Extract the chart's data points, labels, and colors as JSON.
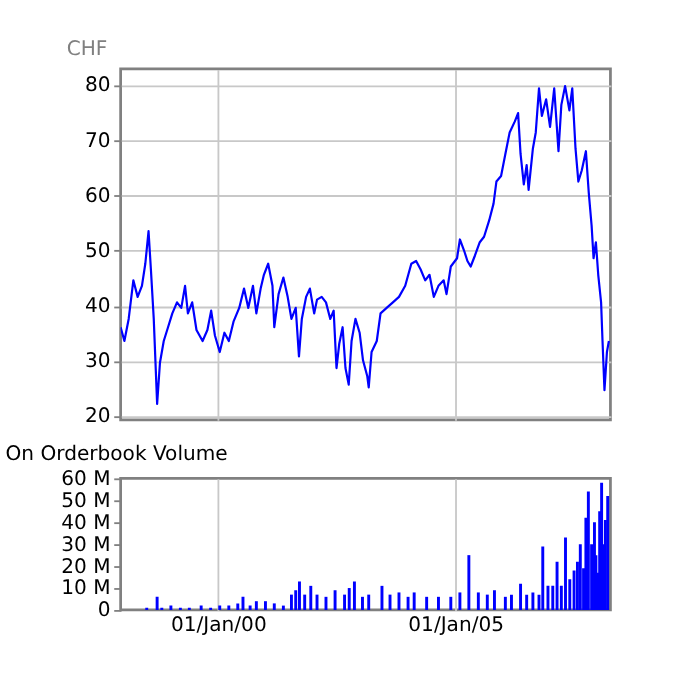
{
  "chart_data": [
    {
      "type": "line",
      "ylabel": "CHF",
      "color": "#0000ff",
      "grid": true,
      "tick_labels": "y",
      "xlim": [
        "1997-12-13",
        "2008-04-10"
      ],
      "xticks": [
        {
          "value": "2000-01-01",
          "label": null
        },
        {
          "value": "2005-01-01",
          "label": null
        }
      ],
      "ylim": [
        19.3,
        82.9
      ],
      "yticks": [
        20,
        30,
        40,
        50,
        60,
        70,
        80
      ],
      "x": [
        "1997-12-13",
        "1998-01-11",
        "1998-02-13",
        "1998-03-21",
        "1998-04-23",
        "1998-05-26",
        "1998-06-21",
        "1998-07-16",
        "1998-08-03",
        "1998-08-25",
        "1998-09-20",
        "1998-10-12",
        "1998-11-10",
        "1998-12-13",
        "1999-01-15",
        "1999-02-20",
        "1999-03-25",
        "1999-04-23",
        "1999-05-15",
        "1999-06-17",
        "1999-07-20",
        "1999-09-05",
        "1999-10-12",
        "1999-11-10",
        "1999-12-09",
        "2000-01-15",
        "2000-02-20",
        "2000-03-25",
        "2000-04-30",
        "2000-06-13",
        "2000-07-20",
        "2000-08-22",
        "2000-09-27",
        "2000-10-23",
        "2000-11-25",
        "2000-12-20",
        "2001-01-22",
        "2001-02-24",
        "2001-03-10",
        "2001-04-12",
        "2001-05-19",
        "2001-06-21",
        "2001-07-20",
        "2001-08-22",
        "2001-09-16",
        "2001-10-08",
        "2001-11-10",
        "2001-12-09",
        "2002-01-11",
        "2002-02-02",
        "2002-03-10",
        "2002-04-12",
        "2002-05-15",
        "2002-06-10",
        "2002-07-02",
        "2002-07-23",
        "2002-08-18",
        "2002-09-09",
        "2002-10-04",
        "2002-10-26",
        "2002-11-25",
        "2002-12-27",
        "2003-01-22",
        "2003-02-24",
        "2003-03-07",
        "2003-03-29",
        "2003-05-08",
        "2003-06-06",
        "2003-07-23",
        "2003-09-09",
        "2003-10-26",
        "2003-12-13",
        "2004-01-29",
        "2004-03-06",
        "2004-04-09",
        "2004-05-15",
        "2004-06-17",
        "2004-07-20",
        "2004-08-25",
        "2004-10-04",
        "2004-10-26",
        "2004-11-28",
        "2005-01-15",
        "2005-02-06",
        "2005-03-10",
        "2005-04-05",
        "2005-04-30",
        "2005-06-02",
        "2005-07-09",
        "2005-08-11",
        "2005-09-20",
        "2005-10-23",
        "2005-11-14",
        "2005-12-20",
        "2006-01-22",
        "2006-02-24",
        "2006-04-05",
        "2006-04-30",
        "2006-05-19",
        "2006-06-13",
        "2006-07-05",
        "2006-07-20",
        "2006-08-22",
        "2006-09-13",
        "2006-10-08",
        "2006-10-30",
        "2006-12-02",
        "2007-01-01",
        "2007-02-02",
        "2007-03-07",
        "2007-03-29",
        "2007-04-27",
        "2007-05-30",
        "2007-06-21",
        "2007-07-16",
        "2007-08-07",
        "2007-09-02",
        "2007-10-04",
        "2007-10-26",
        "2007-11-17",
        "2007-12-02",
        "2007-12-20",
        "2008-01-07",
        "2008-01-29",
        "2008-02-09",
        "2008-02-24",
        "2008-03-14",
        "2008-03-29"
      ],
      "values": [
        36.1,
        33.6,
        37.6,
        44.6,
        41.6,
        43.6,
        47.6,
        53.5,
        46.6,
        37.6,
        22.2,
        29.7,
        33.6,
        36.1,
        38.6,
        40.6,
        39.6,
        43.6,
        38.6,
        40.6,
        35.6,
        33.6,
        35.6,
        39.1,
        34.6,
        31.6,
        35.1,
        33.6,
        37.1,
        39.6,
        43.1,
        39.6,
        43.6,
        38.6,
        43.1,
        45.6,
        47.6,
        43.6,
        36.1,
        42.1,
        45.1,
        41.6,
        37.6,
        39.6,
        30.8,
        37.6,
        41.6,
        43.1,
        38.6,
        41.1,
        41.6,
        40.6,
        37.6,
        39.1,
        28.7,
        33.1,
        36.1,
        28.7,
        25.7,
        33.6,
        37.6,
        35.1,
        30.1,
        27.2,
        25.2,
        31.6,
        33.6,
        38.6,
        39.6,
        40.6,
        41.6,
        43.6,
        47.6,
        48.1,
        46.6,
        44.6,
        45.6,
        41.6,
        43.6,
        44.6,
        42.1,
        47.1,
        48.6,
        52.0,
        50.0,
        48.1,
        47.1,
        49.1,
        51.5,
        52.5,
        55.5,
        58.5,
        62.5,
        63.5,
        67.5,
        71.4,
        73.4,
        74.9,
        67.5,
        62.0,
        65.5,
        61.0,
        68.5,
        71.4,
        79.4,
        74.4,
        77.4,
        72.4,
        79.4,
        68.0,
        76.4,
        79.8,
        75.4,
        79.4,
        68.5,
        62.5,
        64.5,
        68.0,
        60.5,
        54.5,
        48.6,
        51.5,
        45.6,
        40.6,
        33.6,
        24.7,
        31.6,
        33.6
      ]
    },
    {
      "type": "bar",
      "title": "On Orderbook Volume",
      "color": "#0000ff",
      "grid": "x",
      "xlim": [
        "1997-12-13",
        "2008-04-10"
      ],
      "xticks": [
        {
          "value": "2000-01-01",
          "label": "01/Jan/00"
        },
        {
          "value": "2005-01-01",
          "label": "01/Jan/05"
        }
      ],
      "ylim": [
        0,
        60
      ],
      "yticks": [
        0,
        {
          "value": 10,
          "label": "10 M"
        },
        {
          "value": 20,
          "label": "20 M"
        },
        {
          "value": 30,
          "label": "30 M"
        },
        {
          "value": 40,
          "label": "40 M"
        },
        {
          "value": 50,
          "label": "50 M"
        },
        {
          "value": 60,
          "label": "60 M"
        }
      ],
      "x": [
        "1998-07-02",
        "1998-09-20",
        "1998-10-26",
        "1999-01-04",
        "1999-03-18",
        "1999-05-26",
        "1999-08-25",
        "1999-11-06",
        "2000-01-15",
        "2000-03-25",
        "2000-06-02",
        "2000-07-12",
        "2000-09-05",
        "2000-10-23",
        "2001-01-01",
        "2001-03-10",
        "2001-05-19",
        "2001-07-20",
        "2001-08-22",
        "2001-09-20",
        "2001-10-30",
        "2001-12-16",
        "2002-02-02",
        "2002-04-12",
        "2002-06-21",
        "2002-09-02",
        "2002-10-08",
        "2002-11-17",
        "2003-01-18",
        "2003-03-07",
        "2003-06-17",
        "2003-08-18",
        "2003-10-26",
        "2004-01-04",
        "2004-02-20",
        "2004-05-26",
        "2004-08-25",
        "2004-11-28",
        "2005-02-06",
        "2005-04-16",
        "2005-06-28",
        "2005-09-05",
        "2005-10-30",
        "2006-01-22",
        "2006-03-10",
        "2006-05-19",
        "2006-07-05",
        "2006-08-22",
        "2006-10-08",
        "2006-11-06",
        "2006-12-16",
        "2007-01-22",
        "2007-02-24",
        "2007-03-29",
        "2007-04-30",
        "2007-06-02",
        "2007-07-05",
        "2007-07-31",
        "2007-08-22",
        "2007-09-16",
        "2007-10-04",
        "2007-10-23",
        "2007-11-17",
        "2007-12-09",
        "2007-12-20",
        "2008-01-04",
        "2008-01-18",
        "2008-02-02",
        "2008-02-16",
        "2008-03-02",
        "2008-03-20"
      ],
      "values": [
        1,
        6,
        1,
        2,
        1,
        1,
        2,
        1,
        2,
        2,
        3,
        6,
        2,
        4,
        4,
        3,
        2,
        7,
        9,
        13,
        7,
        11,
        7,
        6,
        9,
        7,
        10,
        13,
        6,
        7,
        11,
        7,
        8,
        6,
        8,
        6,
        6,
        6,
        8,
        25,
        8,
        7,
        9,
        6,
        7,
        12,
        7,
        8,
        7,
        29,
        11,
        11,
        22,
        11,
        33,
        14,
        18,
        22,
        30,
        19,
        42,
        54,
        30,
        40,
        25,
        17,
        45,
        58,
        30,
        41,
        52
      ]
    }
  ]
}
